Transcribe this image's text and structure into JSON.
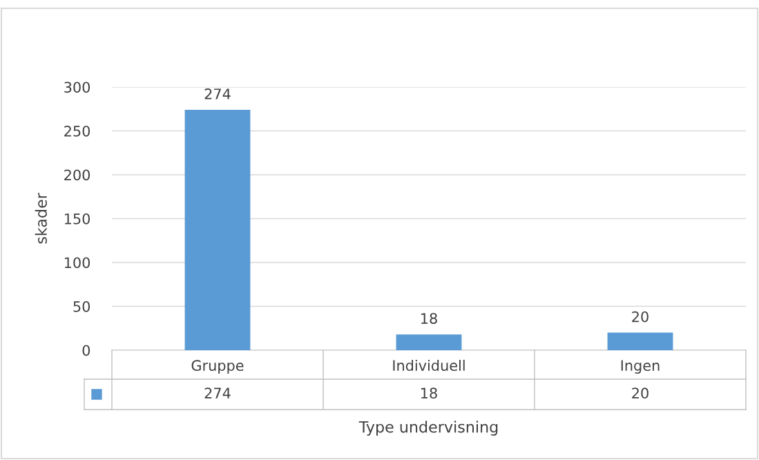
{
  "chart_data": {
    "type": "bar",
    "xlabel": "Type undervisning",
    "ylabel": "skader",
    "categories": [
      "Gruppe",
      "Individuell",
      "Ingen"
    ],
    "values": [
      274,
      18,
      20
    ],
    "value_labels": [
      "274",
      "18",
      "20"
    ],
    "annotations": [
      "274",
      "18",
      "20"
    ],
    "color": "#5b9bd5",
    "ylim": [
      0,
      300
    ],
    "yticks": [
      0,
      50,
      100,
      150,
      200,
      250,
      300
    ],
    "grid": "y"
  }
}
